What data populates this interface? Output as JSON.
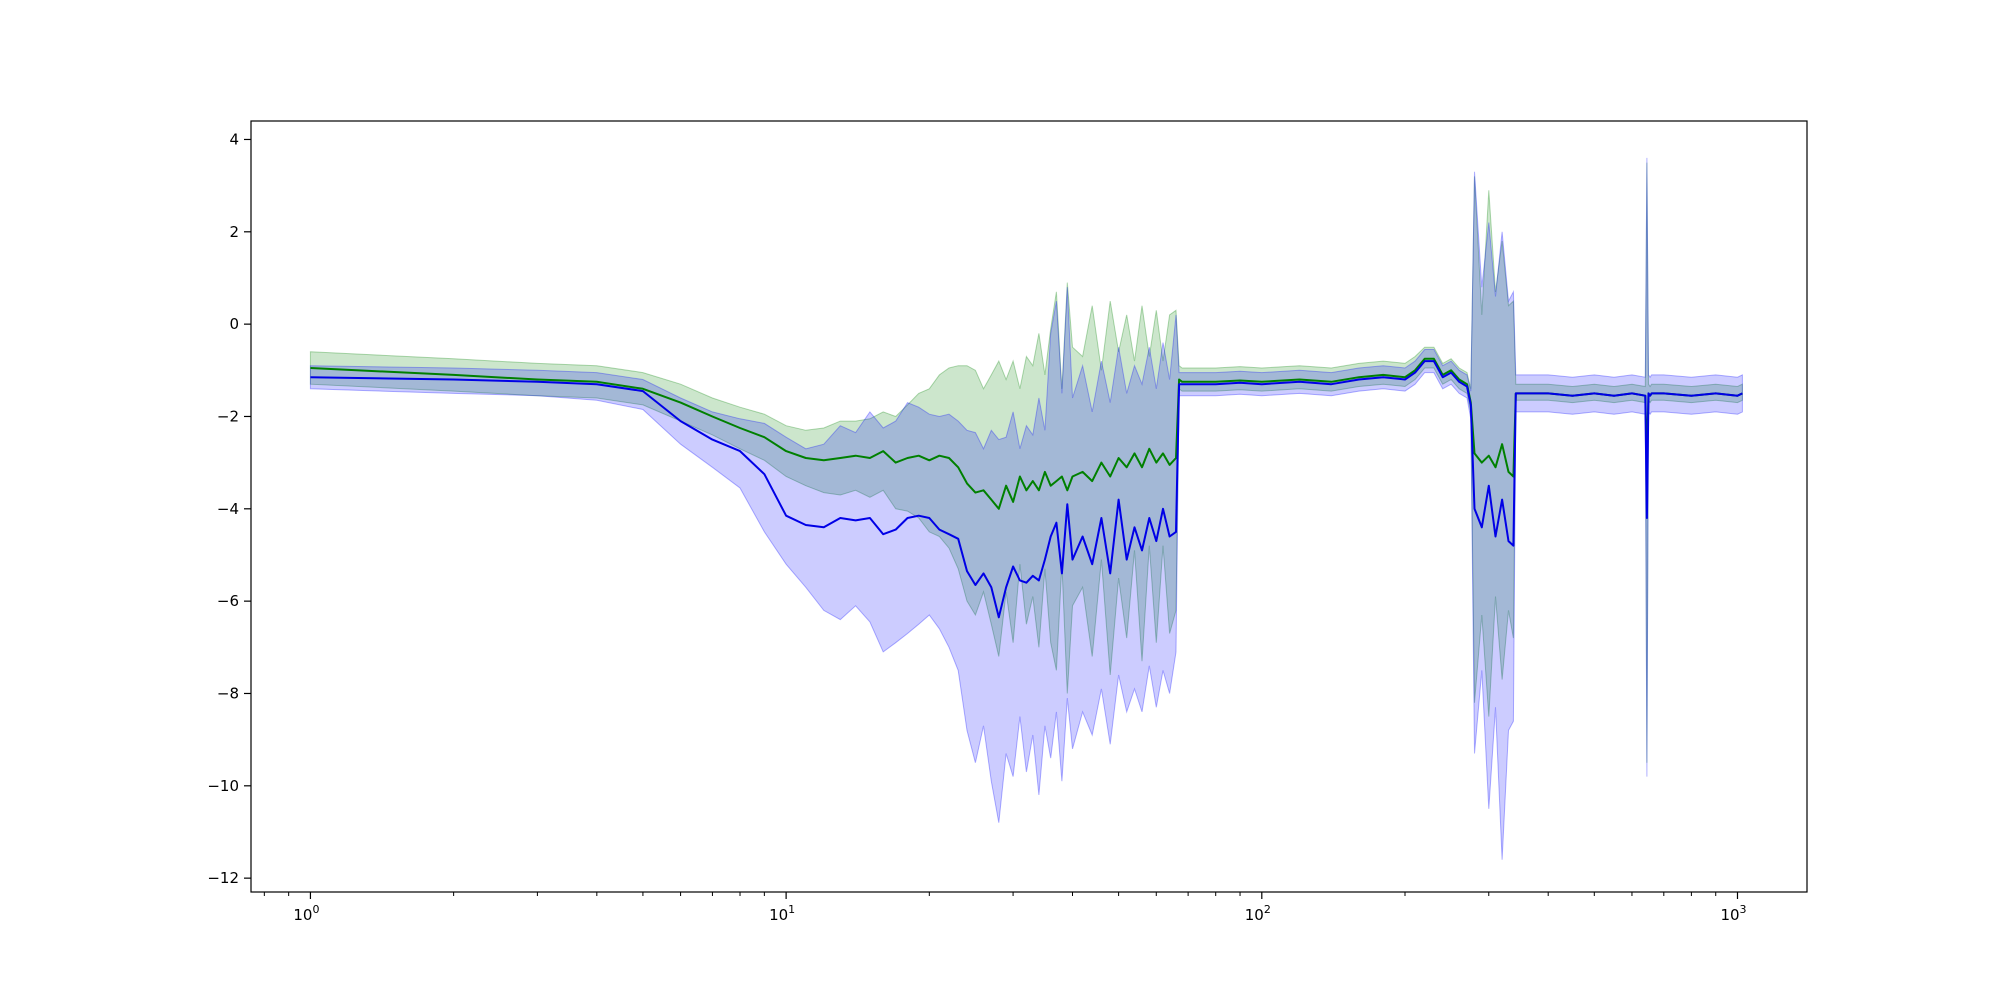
{
  "chart_data": {
    "type": "line",
    "title": "",
    "xlabel": "",
    "ylabel": "",
    "x_scale": "log",
    "xlim": [
      0.75,
      1400
    ],
    "ylim": [
      -12.3,
      4.4
    ],
    "grid": false,
    "legend": null,
    "x_ticks": [
      {
        "value": 1,
        "base": "10",
        "exp": "0"
      },
      {
        "value": 10,
        "base": "10",
        "exp": "1"
      },
      {
        "value": 100,
        "base": "10",
        "exp": "2"
      },
      {
        "value": 1000,
        "base": "10",
        "exp": "3"
      }
    ],
    "y_ticks": [
      {
        "value": 4,
        "label": "4"
      },
      {
        "value": 2,
        "label": "2"
      },
      {
        "value": 0,
        "label": "0"
      },
      {
        "value": -2,
        "label": "−2"
      },
      {
        "value": -4,
        "label": "−4"
      },
      {
        "value": -6,
        "label": "−6"
      },
      {
        "value": -8,
        "label": "−8"
      },
      {
        "value": -10,
        "label": "−10"
      },
      {
        "value": -12,
        "label": "−12"
      }
    ],
    "series": [
      {
        "line_color": "#008000",
        "band_color": "#008000",
        "band_opacity": 0.2,
        "x": [
          1,
          2,
          3,
          4,
          5,
          6,
          7,
          8,
          9,
          10,
          11,
          12,
          13,
          14,
          15,
          16,
          17,
          18,
          19,
          20,
          21,
          22,
          23,
          24,
          25,
          26,
          27,
          28,
          29,
          30,
          31,
          32,
          33,
          34,
          35,
          36,
          37,
          38,
          39,
          40,
          42,
          44,
          46,
          48,
          50,
          52,
          54,
          56,
          58,
          60,
          62,
          64,
          66,
          67,
          68,
          70,
          80,
          90,
          100,
          120,
          140,
          160,
          180,
          200,
          210,
          220,
          230,
          240,
          250,
          260,
          270,
          275,
          280,
          290,
          300,
          310,
          320,
          330,
          338,
          342,
          350,
          400,
          450,
          500,
          550,
          600,
          640,
          645,
          650,
          655,
          660,
          700,
          800,
          900,
          1000,
          1024
        ],
        "mean": [
          -0.95,
          -1.1,
          -1.2,
          -1.25,
          -1.4,
          -1.7,
          -2.0,
          -2.25,
          -2.45,
          -2.75,
          -2.9,
          -2.95,
          -2.9,
          -2.85,
          -2.9,
          -2.75,
          -3.0,
          -2.9,
          -2.85,
          -2.95,
          -2.85,
          -2.9,
          -3.1,
          -3.45,
          -3.65,
          -3.6,
          -3.8,
          -4.0,
          -3.5,
          -3.85,
          -3.3,
          -3.6,
          -3.4,
          -3.6,
          -3.2,
          -3.5,
          -3.4,
          -3.3,
          -3.6,
          -3.3,
          -3.2,
          -3.4,
          -3.0,
          -3.3,
          -2.9,
          -3.1,
          -2.8,
          -3.1,
          -2.7,
          -3.0,
          -2.8,
          -3.05,
          -2.9,
          -1.2,
          -1.25,
          -1.25,
          -1.25,
          -1.22,
          -1.25,
          -1.2,
          -1.25,
          -1.15,
          -1.1,
          -1.15,
          -1.0,
          -0.75,
          -0.75,
          -1.1,
          -1.0,
          -1.2,
          -1.3,
          -1.7,
          -2.8,
          -3.0,
          -2.85,
          -3.1,
          -2.6,
          -3.2,
          -3.3,
          -1.5,
          -1.5,
          -1.5,
          -1.55,
          -1.5,
          -1.55,
          -1.5,
          -1.55,
          -3.0,
          -1.5,
          -1.55,
          -1.5,
          -1.5,
          -1.55,
          -1.5,
          -1.55,
          -1.5
        ],
        "lower": [
          -1.3,
          -1.45,
          -1.55,
          -1.6,
          -1.75,
          -2.1,
          -2.4,
          -2.7,
          -2.95,
          -3.3,
          -3.5,
          -3.65,
          -3.7,
          -3.6,
          -3.75,
          -3.6,
          -4.0,
          -4.05,
          -4.2,
          -4.5,
          -4.6,
          -4.85,
          -5.3,
          -6.0,
          -6.3,
          -5.8,
          -6.5,
          -7.2,
          -5.8,
          -6.9,
          -5.2,
          -6.5,
          -5.9,
          -7.0,
          -5.3,
          -6.9,
          -7.5,
          -5.2,
          -8.0,
          -6.1,
          -5.7,
          -7.2,
          -5.1,
          -7.6,
          -5.5,
          -6.8,
          -4.9,
          -7.3,
          -4.8,
          -6.9,
          -4.8,
          -6.7,
          -6.2,
          -1.4,
          -1.45,
          -1.45,
          -1.45,
          -1.42,
          -1.45,
          -1.4,
          -1.45,
          -1.35,
          -1.3,
          -1.35,
          -1.2,
          -0.95,
          -0.95,
          -1.3,
          -1.2,
          -1.4,
          -1.5,
          -1.9,
          -8.2,
          -6.3,
          -8.5,
          -5.9,
          -7.7,
          -6.2,
          -6.8,
          -1.65,
          -1.65,
          -1.65,
          -1.7,
          -1.65,
          -1.7,
          -1.65,
          -1.7,
          -9.5,
          -1.65,
          -1.7,
          -1.65,
          -1.65,
          -1.7,
          -1.65,
          -1.7,
          -1.65
        ],
        "upper": [
          -0.6,
          -0.75,
          -0.85,
          -0.9,
          -1.05,
          -1.3,
          -1.6,
          -1.8,
          -1.95,
          -2.2,
          -2.3,
          -2.25,
          -2.1,
          -2.1,
          -2.05,
          -1.9,
          -2.0,
          -1.75,
          -1.5,
          -1.4,
          -1.1,
          -0.95,
          -0.9,
          -0.9,
          -1.0,
          -1.4,
          -1.1,
          -0.8,
          -1.2,
          -0.8,
          -1.4,
          -0.7,
          -0.9,
          -0.2,
          -1.1,
          -0.1,
          0.7,
          -1.4,
          0.9,
          -0.5,
          -0.7,
          0.4,
          -1.0,
          0.5,
          -0.6,
          0.2,
          -0.8,
          0.4,
          -0.7,
          0.3,
          -0.8,
          0.2,
          0.3,
          -0.9,
          -0.95,
          -0.95,
          -0.95,
          -0.92,
          -0.95,
          -0.9,
          -0.95,
          -0.85,
          -0.8,
          -0.85,
          -0.7,
          -0.5,
          -0.5,
          -0.85,
          -0.75,
          -0.95,
          -1.05,
          -1.4,
          3.2,
          0.2,
          2.9,
          0.7,
          1.8,
          0.4,
          0.5,
          -1.3,
          -1.3,
          -1.3,
          -1.35,
          -1.3,
          -1.35,
          -1.3,
          -1.35,
          3.5,
          -1.3,
          -1.35,
          -1.3,
          -1.3,
          -1.35,
          -1.3,
          -1.35,
          -1.3
        ]
      },
      {
        "line_color": "#0000e6",
        "band_color": "#0000ff",
        "band_opacity": 0.2,
        "x": [
          1,
          2,
          3,
          4,
          5,
          6,
          7,
          8,
          9,
          10,
          11,
          12,
          13,
          14,
          15,
          16,
          17,
          18,
          19,
          20,
          21,
          22,
          23,
          24,
          25,
          26,
          27,
          28,
          29,
          30,
          31,
          32,
          33,
          34,
          35,
          36,
          37,
          38,
          39,
          40,
          42,
          44,
          46,
          48,
          50,
          52,
          54,
          56,
          58,
          60,
          62,
          64,
          66,
          67,
          68,
          70,
          80,
          90,
          100,
          120,
          140,
          160,
          180,
          200,
          210,
          220,
          230,
          240,
          250,
          260,
          270,
          275,
          280,
          290,
          300,
          310,
          320,
          330,
          338,
          342,
          350,
          400,
          450,
          500,
          550,
          600,
          640,
          645,
          650,
          655,
          660,
          700,
          800,
          900,
          1000,
          1024
        ],
        "mean": [
          -1.15,
          -1.2,
          -1.25,
          -1.3,
          -1.45,
          -2.1,
          -2.5,
          -2.75,
          -3.25,
          -4.15,
          -4.35,
          -4.4,
          -4.2,
          -4.25,
          -4.2,
          -4.55,
          -4.45,
          -4.2,
          -4.15,
          -4.2,
          -4.45,
          -4.55,
          -4.65,
          -5.35,
          -5.65,
          -5.4,
          -5.7,
          -6.35,
          -5.7,
          -5.25,
          -5.55,
          -5.6,
          -5.45,
          -5.55,
          -5.1,
          -4.6,
          -4.3,
          -5.4,
          -3.9,
          -5.1,
          -4.6,
          -5.2,
          -4.2,
          -5.4,
          -3.8,
          -5.1,
          -4.4,
          -4.9,
          -4.2,
          -4.7,
          -4.0,
          -4.6,
          -4.5,
          -1.3,
          -1.3,
          -1.3,
          -1.3,
          -1.27,
          -1.3,
          -1.25,
          -1.3,
          -1.2,
          -1.15,
          -1.2,
          -1.05,
          -0.8,
          -0.8,
          -1.15,
          -1.05,
          -1.25,
          -1.35,
          -1.75,
          -4.0,
          -4.4,
          -3.5,
          -4.6,
          -3.8,
          -4.7,
          -4.8,
          -1.5,
          -1.5,
          -1.5,
          -1.55,
          -1.5,
          -1.55,
          -1.5,
          -1.55,
          -4.2,
          -1.5,
          -1.55,
          -1.5,
          -1.5,
          -1.55,
          -1.5,
          -1.55,
          -1.5
        ],
        "lower": [
          -1.4,
          -1.5,
          -1.55,
          -1.65,
          -1.85,
          -2.6,
          -3.1,
          -3.55,
          -4.5,
          -5.2,
          -5.7,
          -6.2,
          -6.4,
          -6.1,
          -6.45,
          -7.1,
          -6.9,
          -6.7,
          -6.5,
          -6.3,
          -6.6,
          -7.0,
          -7.5,
          -8.8,
          -9.5,
          -8.7,
          -9.9,
          -10.8,
          -9.3,
          -9.8,
          -8.5,
          -9.7,
          -8.9,
          -10.2,
          -8.7,
          -9.4,
          -8.4,
          -9.9,
          -8.1,
          -9.2,
          -8.4,
          -8.9,
          -7.9,
          -9.1,
          -7.6,
          -8.4,
          -7.9,
          -8.4,
          -7.4,
          -8.3,
          -7.5,
          -8.0,
          -7.1,
          -1.55,
          -1.55,
          -1.55,
          -1.55,
          -1.52,
          -1.55,
          -1.5,
          -1.55,
          -1.45,
          -1.4,
          -1.45,
          -1.3,
          -1.05,
          -1.05,
          -1.4,
          -1.3,
          -1.5,
          -1.6,
          -2.05,
          -9.3,
          -7.5,
          -10.5,
          -8.3,
          -11.6,
          -8.8,
          -8.6,
          -1.9,
          -1.9,
          -1.9,
          -1.95,
          -1.9,
          -1.95,
          -1.9,
          -1.95,
          -9.8,
          -1.9,
          -1.95,
          -1.9,
          -1.9,
          -1.95,
          -1.9,
          -1.95,
          -1.9
        ],
        "upper": [
          -0.9,
          -0.95,
          -1.0,
          -1.05,
          -1.2,
          -1.6,
          -1.9,
          -2.05,
          -2.15,
          -2.45,
          -2.7,
          -2.6,
          -2.2,
          -2.35,
          -1.9,
          -2.25,
          -2.1,
          -1.7,
          -1.8,
          -1.95,
          -2.0,
          -1.95,
          -2.1,
          -2.3,
          -2.35,
          -2.7,
          -2.3,
          -2.5,
          -2.45,
          -1.9,
          -2.7,
          -2.2,
          -2.4,
          -1.6,
          -2.3,
          -0.2,
          0.5,
          -1.5,
          0.8,
          -1.6,
          -0.9,
          -1.9,
          -0.8,
          -1.7,
          -0.5,
          -1.5,
          -0.9,
          -1.3,
          -0.5,
          -1.4,
          -0.4,
          -1.2,
          0.2,
          -1.05,
          -1.05,
          -1.05,
          -1.05,
          -1.02,
          -1.05,
          -1.0,
          -1.05,
          -0.95,
          -0.9,
          -0.95,
          -0.8,
          -0.55,
          -0.55,
          -0.9,
          -0.8,
          -1.0,
          -1.1,
          -1.45,
          3.3,
          0.8,
          2.2,
          0.6,
          2.0,
          0.5,
          0.7,
          -1.1,
          -1.1,
          -1.1,
          -1.15,
          -1.1,
          -1.15,
          -1.1,
          -1.15,
          3.6,
          -1.1,
          -1.15,
          -1.1,
          -1.1,
          -1.15,
          -1.1,
          -1.15,
          -1.1
        ]
      }
    ]
  }
}
